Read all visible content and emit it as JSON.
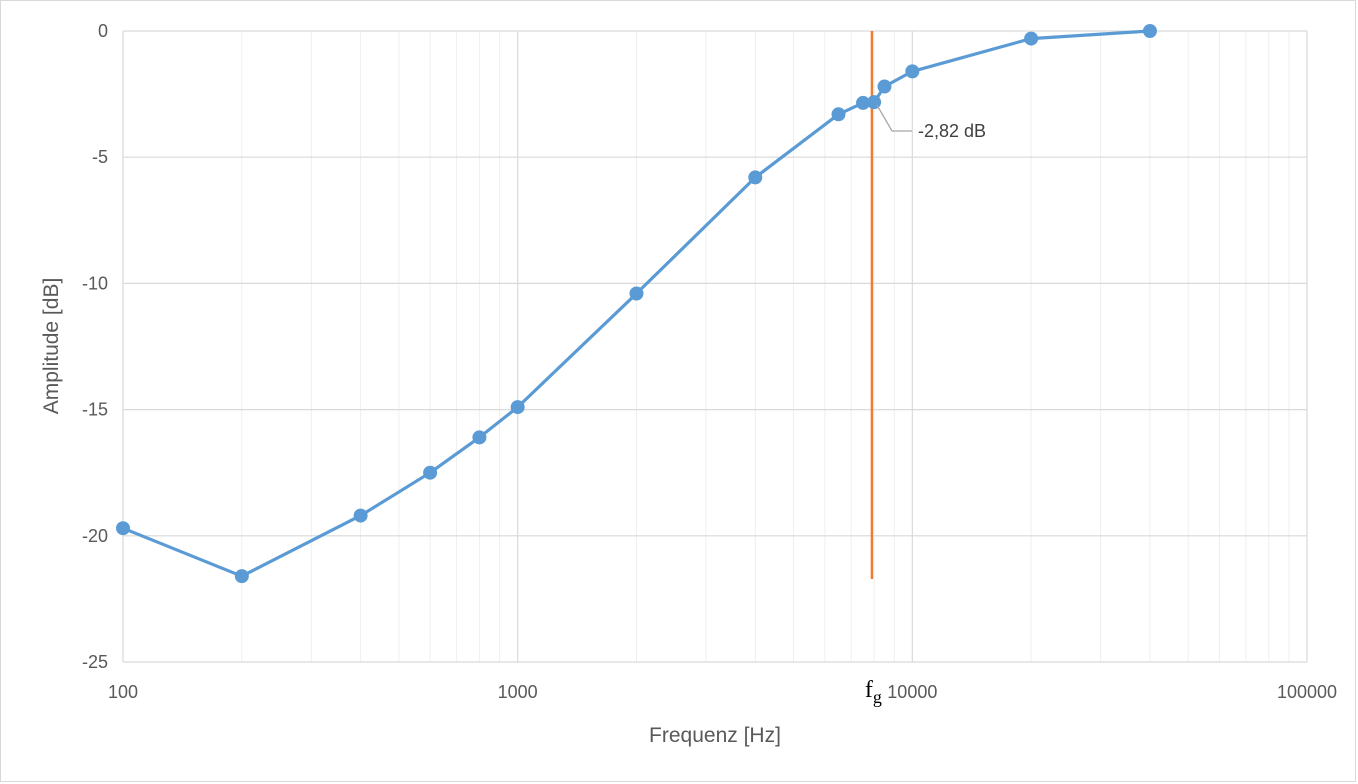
{
  "chart_data": {
    "type": "line",
    "xscale": "log",
    "xlim": [
      100,
      100000
    ],
    "ylim": [
      -25,
      0
    ],
    "xlabel": "Frequenz [Hz]",
    "ylabel": "Amplitude [dB]",
    "x_ticks": [
      "100",
      "1000",
      "10000",
      "100000"
    ],
    "y_ticks": [
      "0",
      "-5",
      "-10",
      "-15",
      "-20",
      "-25"
    ],
    "grid": true,
    "series": [
      {
        "color": "#5b9bd5",
        "x": [
          100,
          200,
          400,
          600,
          800,
          1000,
          2000,
          4000,
          6500,
          7500,
          8000,
          8500,
          10000,
          20000,
          40000
        ],
        "y": [
          -19.7,
          -21.6,
          -19.2,
          -17.5,
          -16.1,
          -14.9,
          -10.4,
          -5.8,
          -3.3,
          -2.85,
          -2.82,
          -2.2,
          -1.6,
          -0.3,
          0
        ]
      }
    ],
    "marker_line": {
      "x": 7900,
      "color": "#ed7d31",
      "label_main": "f",
      "label_sub": "g"
    },
    "annotation": {
      "text": "-2,82 dB",
      "x": 8000,
      "y": -2.82
    }
  }
}
